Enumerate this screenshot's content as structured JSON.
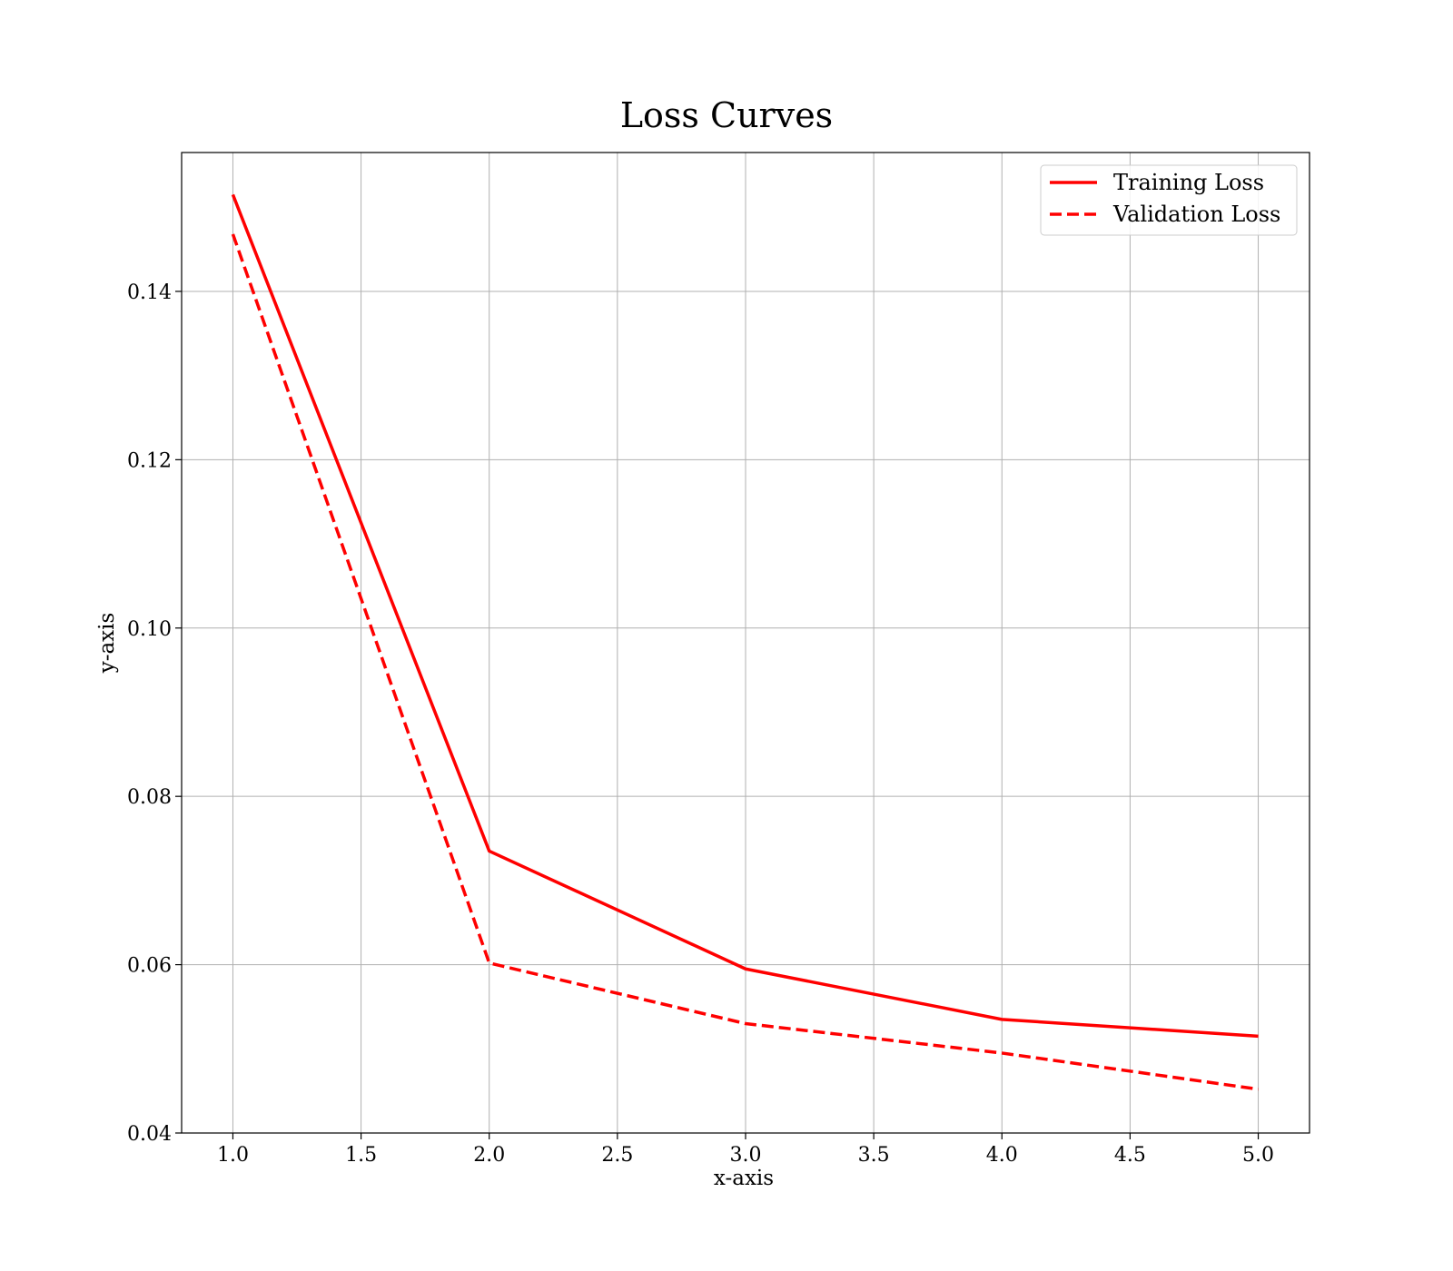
{
  "chart_data": {
    "type": "line",
    "title": "Loss Curves",
    "xlabel": "x-axis",
    "ylabel": "y-axis",
    "xlim": [
      0.8,
      5.2
    ],
    "ylim": [
      0.04,
      0.1565
    ],
    "x_ticks": [
      1.0,
      1.5,
      2.0,
      2.5,
      3.0,
      3.5,
      4.0,
      4.5,
      5.0
    ],
    "x_tick_labels": [
      "1.0",
      "1.5",
      "2.0",
      "2.5",
      "3.0",
      "3.5",
      "4.0",
      "4.5",
      "5.0"
    ],
    "y_ticks": [
      0.04,
      0.06,
      0.08,
      0.1,
      0.12,
      0.14
    ],
    "y_tick_labels": [
      "0.04",
      "0.06",
      "0.08",
      "0.10",
      "0.12",
      "0.14"
    ],
    "grid": true,
    "legend_position": "top-right",
    "x": [
      1,
      2,
      3,
      4,
      5
    ],
    "series": [
      {
        "name": "Training Loss",
        "values": [
          0.1515,
          0.0735,
          0.0595,
          0.0535,
          0.0515
        ],
        "color": "#ff0000",
        "line_style": "solid"
      },
      {
        "name": "Validation Loss",
        "values": [
          0.1468,
          0.0602,
          0.053,
          0.0495,
          0.0452
        ],
        "color": "#ff0000",
        "line_style": "dashed"
      }
    ]
  }
}
